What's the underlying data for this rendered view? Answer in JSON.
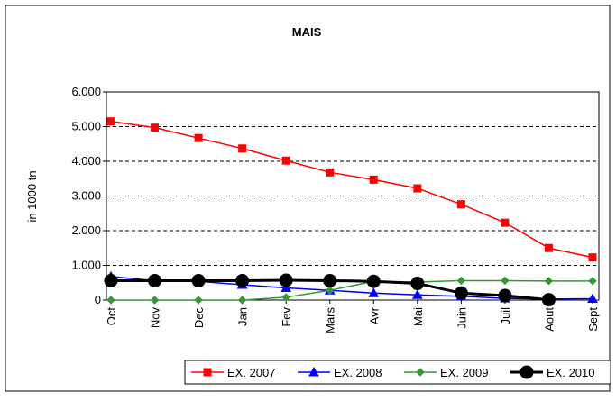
{
  "chart_data": {
    "type": "line",
    "title": "MAIS",
    "y_label": "in 1000 tn",
    "categories": [
      "Oct",
      "Nov",
      "Dec",
      "Jan",
      "Fev",
      "Mars",
      "Avr",
      "Mai",
      "Juin",
      "Juil",
      "Aout",
      "Sept"
    ],
    "series": [
      {
        "name": "EX. 2007",
        "color": "#ff0000",
        "marker": "square",
        "values": [
          5150,
          4970,
          4670,
          4370,
          4020,
          3680,
          3470,
          3220,
          2760,
          2230,
          1500,
          1230
        ]
      },
      {
        "name": "EX. 2008",
        "color": "#0000ff",
        "marker": "triangle",
        "values": [
          680,
          560,
          540,
          440,
          350,
          280,
          200,
          150,
          110,
          50,
          30,
          40
        ]
      },
      {
        "name": "EX. 2009",
        "color": "#339933",
        "marker": "diamond",
        "values": [
          0,
          0,
          0,
          0,
          80,
          280,
          540,
          520,
          560,
          560,
          550,
          550
        ]
      },
      {
        "name": "EX. 2010",
        "color": "#000000",
        "marker": "circle",
        "values": [
          560,
          560,
          560,
          560,
          570,
          560,
          540,
          480,
          200,
          130,
          10,
          null
        ]
      }
    ],
    "ylim": [
      0,
      6000
    ],
    "yticks": [
      0,
      {
        "value": 1000,
        "label": "1.000"
      },
      {
        "value": 2000,
        "label": "2.000"
      },
      {
        "value": 3000,
        "label": "3.000"
      },
      {
        "value": 4000,
        "label": "4.000"
      },
      {
        "value": 5000,
        "label": "5.000"
      },
      {
        "value": 6000,
        "label": "6.000"
      }
    ],
    "grid": true,
    "legend": "bottom"
  }
}
